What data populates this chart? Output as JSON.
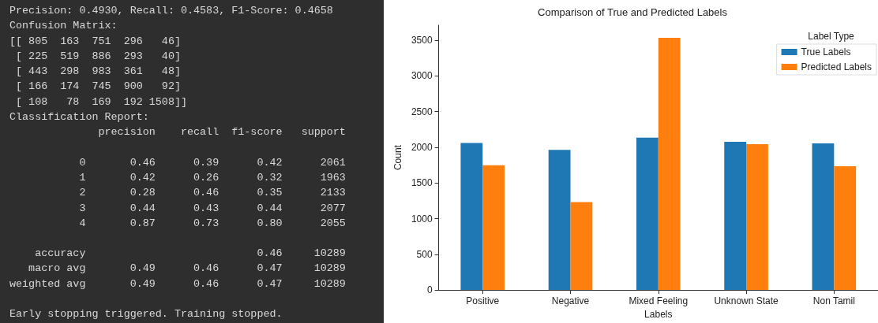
{
  "chart_data": [
    {
      "type": "other",
      "annotations": [
        "Precision: 0.4930, Recall: 0.4583, F1-Score: 0.4658\nConfusion Matrix:\n[[ 805  163  751  296   46]\n [ 225  519  886  293   40]\n [ 443  298  983  361   48]\n [ 166  174  745  900   92]\n [ 108   78  169  192 1508]]\nClassification Report:\n              precision    recall  f1-score   support",
        "           0       0.46      0.39      0.42      2061\n           1       0.42      0.26      0.32      1963\n           2       0.28      0.46      0.35      2133\n           3       0.44      0.43      0.44      2077\n           4       0.87      0.73      0.80      2055",
        "    accuracy                           0.46     10289\n   macro avg       0.49      0.46      0.47     10289\nweighted avg       0.49      0.46      0.47     10289",
        "Early stopping triggered. Training stopped."
      ]
    },
    {
      "type": "bar",
      "title": "Comparison of True and Predicted Labels",
      "xlabel": "Labels",
      "ylabel": "Count",
      "legend_title": "Label Type",
      "legend": "top right",
      "grid": false,
      "categories": [
        "Positive",
        "Negative",
        "Mixed Feeling",
        "Unknown State",
        "Non Tamil"
      ],
      "series": [
        {
          "name": "True Labels",
          "color": "#1f77b4",
          "values": [
            2061,
            1963,
            2133,
            2077,
            2055
          ]
        },
        {
          "name": "Predicted Labels",
          "color": "#ff7f0e",
          "values": [
            1747,
            1232,
            3534,
            2042,
            1734
          ]
        }
      ],
      "ylim": [
        0,
        3710
      ],
      "yticks": [
        0,
        500,
        1000,
        1500,
        2000,
        2500,
        3000,
        3500
      ]
    }
  ]
}
